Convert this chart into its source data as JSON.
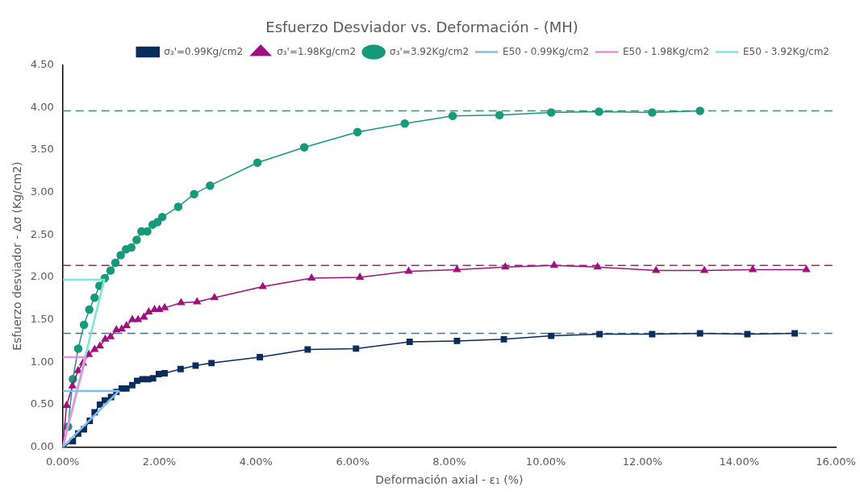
{
  "chart_data": {
    "type": "line",
    "title": "Esfuerzo Desviador vs. Deformación - (MH)",
    "xlabel": "Deformación axial - ε₁ (%)",
    "ylabel": "Esfuerzo desviador - Δσ (Kg/cm2)",
    "xlim": [
      0,
      16
    ],
    "xticks": [
      {
        "value": 0,
        "label": "0.00%"
      },
      {
        "value": 2,
        "label": "2.00%"
      },
      {
        "value": 4,
        "label": "4.00%"
      },
      {
        "value": 6,
        "label": "6.00%"
      },
      {
        "value": 8,
        "label": "8.00%"
      },
      {
        "value": 10,
        "label": "10.00%"
      },
      {
        "value": 12,
        "label": "12.00%"
      },
      {
        "value": 14,
        "label": "14.00%"
      },
      {
        "value": 16,
        "label": "16.00%"
      }
    ],
    "ylim": [
      0,
      4.5
    ],
    "yticks": [
      {
        "value": 0,
        "label": "0.00"
      },
      {
        "value": 0.5,
        "label": "0.50"
      },
      {
        "value": 1,
        "label": "1.00"
      },
      {
        "value": 1.5,
        "label": "1.50"
      },
      {
        "value": 2,
        "label": "2.00"
      },
      {
        "value": 2.5,
        "label": "2.50"
      },
      {
        "value": 3,
        "label": "3.00"
      },
      {
        "value": 3.5,
        "label": "3.50"
      },
      {
        "value": 4,
        "label": "4.00"
      },
      {
        "value": 4.5,
        "label": "4.50"
      }
    ],
    "grid": false,
    "legend": "top right",
    "series": [
      {
        "name": "σ₃'=0.99Kg/cm2",
        "color": "#0b2d5b",
        "marker": "square",
        "x": [
          0,
          0.21,
          0.32,
          0.44,
          0.56,
          0.66,
          0.77,
          0.87,
          1.0,
          1.11,
          1.22,
          1.32,
          1.44,
          1.54,
          1.65,
          1.77,
          1.87,
          1.99,
          2.11,
          2.44,
          2.75,
          3.08,
          4.08,
          5.07,
          6.07,
          7.18,
          8.16,
          9.13,
          10.11,
          11.11,
          12.2,
          13.19,
          14.17,
          15.15
        ],
        "values": [
          0,
          0.07,
          0.16,
          0.21,
          0.31,
          0.41,
          0.5,
          0.55,
          0.59,
          0.65,
          0.69,
          0.69,
          0.73,
          0.78,
          0.8,
          0.8,
          0.81,
          0.86,
          0.87,
          0.92,
          0.96,
          0.99,
          1.06,
          1.15,
          1.16,
          1.24,
          1.25,
          1.27,
          1.31,
          1.33,
          1.33,
          1.34,
          1.33,
          1.34
        ]
      },
      {
        "name": "σ₃'=1.98Kg/cm2",
        "color": "#a0107e",
        "marker": "triangle",
        "x": [
          0,
          0.08,
          0.2,
          0.32,
          0.42,
          0.54,
          0.66,
          0.77,
          0.88,
          0.99,
          1.11,
          1.22,
          1.32,
          1.44,
          1.56,
          1.68,
          1.78,
          1.9,
          2.0,
          2.11,
          2.45,
          2.78,
          3.14,
          4.14,
          5.15,
          6.15,
          7.16,
          8.16,
          9.16,
          10.17,
          11.07,
          12.28,
          13.28,
          14.28,
          15.39
        ],
        "values": [
          0,
          0.49,
          0.72,
          0.9,
          0.99,
          1.09,
          1.15,
          1.19,
          1.27,
          1.3,
          1.38,
          1.39,
          1.43,
          1.5,
          1.5,
          1.53,
          1.59,
          1.62,
          1.62,
          1.64,
          1.7,
          1.71,
          1.76,
          1.89,
          1.99,
          2.0,
          2.07,
          2.09,
          2.12,
          2.14,
          2.12,
          2.08,
          2.08,
          2.09,
          2.09
        ]
      },
      {
        "name": "σ₃'=3.92Kg/cm2",
        "color": "#169a7a",
        "marker": "circle",
        "x": [
          0,
          0.11,
          0.21,
          0.32,
          0.44,
          0.55,
          0.66,
          0.76,
          0.87,
          0.99,
          1.09,
          1.2,
          1.31,
          1.42,
          1.53,
          1.63,
          1.75,
          1.86,
          1.96,
          2.06,
          2.39,
          2.72,
          3.05,
          4.03,
          5.0,
          6.1,
          7.08,
          8.07,
          9.04,
          10.11,
          11.1,
          12.2,
          13.19
        ],
        "values": [
          0,
          0.24,
          0.8,
          1.16,
          1.44,
          1.62,
          1.76,
          1.9,
          1.99,
          2.08,
          2.17,
          2.26,
          2.33,
          2.35,
          2.44,
          2.54,
          2.54,
          2.62,
          2.65,
          2.71,
          2.83,
          2.98,
          3.08,
          3.35,
          3.53,
          3.71,
          3.81,
          3.9,
          3.91,
          3.94,
          3.95,
          3.94,
          3.96
        ]
      },
      {
        "name": "E50 - 0.99Kg/cm2",
        "color": "#7fbfea",
        "marker": "none",
        "x": [
          0,
          1.16,
          0
        ],
        "values": [
          0,
          0.66,
          0.66
        ]
      },
      {
        "name": "E50 - 1.98Kg/cm2",
        "color": "#f08ce0",
        "marker": "none",
        "x": [
          0,
          0.48,
          0
        ],
        "values": [
          0,
          1.06,
          1.06
        ]
      },
      {
        "name": "E50 - 3.92Kg/cm2",
        "color": "#7ee8d8",
        "marker": "none",
        "x": [
          0,
          0.86,
          0
        ],
        "values": [
          0,
          1.97,
          1.97
        ]
      }
    ],
    "ref_lines": [
      {
        "axis": "y",
        "value": 1.34,
        "color": "#2e75b6",
        "line_style": "dashed"
      },
      {
        "axis": "y",
        "value": 2.14,
        "color": "#a0207a",
        "line_style": "dashed"
      },
      {
        "axis": "y",
        "value": 3.96,
        "color": "#1a9a80",
        "line_style": "dashed"
      }
    ]
  }
}
